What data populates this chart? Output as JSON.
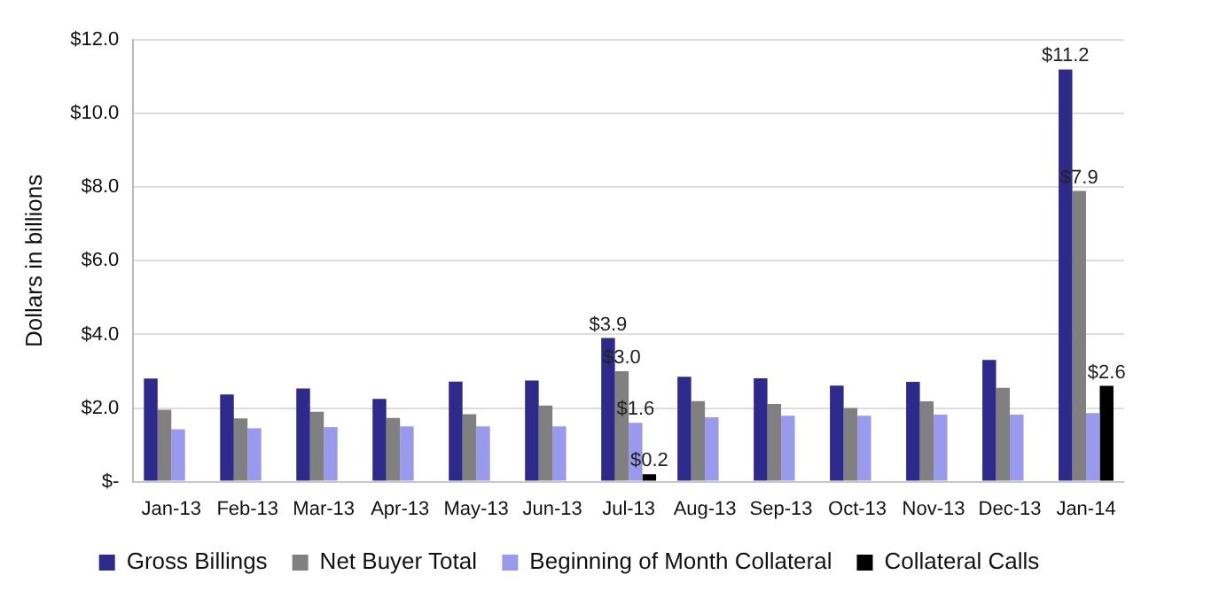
{
  "chart_data": {
    "type": "bar",
    "ylabel": "Dollars in billions",
    "categories": [
      "Jan-13",
      "Feb-13",
      "Mar-13",
      "Apr-13",
      "May-13",
      "Jun-13",
      "Jul-13",
      "Aug-13",
      "Sep-13",
      "Oct-13",
      "Nov-13",
      "Dec-13",
      "Jan-14"
    ],
    "series": [
      {
        "name": "Gross Billings",
        "color": "#2e2a8c",
        "values": [
          2.8,
          2.37,
          2.53,
          2.25,
          2.72,
          2.75,
          3.9,
          2.85,
          2.81,
          2.61,
          2.71,
          3.31,
          11.2
        ],
        "value_labels": [
          null,
          null,
          null,
          null,
          null,
          null,
          "$3.9",
          null,
          null,
          null,
          null,
          null,
          "$11.2"
        ]
      },
      {
        "name": "Net Buyer Total",
        "color": "#808080",
        "values": [
          1.95,
          1.72,
          1.9,
          1.73,
          1.83,
          2.07,
          3.0,
          2.19,
          2.11,
          2.0,
          2.18,
          2.55,
          7.9
        ],
        "value_labels": [
          null,
          null,
          null,
          null,
          null,
          null,
          "$3.0",
          null,
          null,
          null,
          null,
          null,
          "$7.9"
        ]
      },
      {
        "name": "Beginning of Month Collateral",
        "color": "#9999ee",
        "values": [
          1.42,
          1.45,
          1.48,
          1.5,
          1.5,
          1.5,
          1.6,
          1.75,
          1.79,
          1.79,
          1.82,
          1.82,
          1.86
        ],
        "value_labels": [
          null,
          null,
          null,
          null,
          null,
          null,
          "$1.6",
          null,
          null,
          null,
          null,
          null,
          null
        ]
      },
      {
        "name": "Collateral Calls",
        "color": "#000000",
        "values": [
          0,
          null,
          0,
          0,
          0,
          0,
          0.2,
          null,
          0,
          null,
          0,
          null,
          2.6
        ],
        "value_labels": [
          null,
          null,
          null,
          null,
          null,
          null,
          "$0.2",
          null,
          null,
          null,
          null,
          null,
          "$2.6"
        ]
      }
    ],
    "ylim": [
      0,
      12
    ],
    "yticks": [
      {
        "value": 0,
        "label": "$-"
      },
      {
        "value": 2,
        "label": "$2.0"
      },
      {
        "value": 4,
        "label": "$4.0"
      },
      {
        "value": 6,
        "label": "$6.0"
      },
      {
        "value": 8,
        "label": "$8.0"
      },
      {
        "value": 10,
        "label": "$10.0"
      },
      {
        "value": 12,
        "label": "$12.0"
      }
    ],
    "grid": "y",
    "legend": "bottom"
  }
}
